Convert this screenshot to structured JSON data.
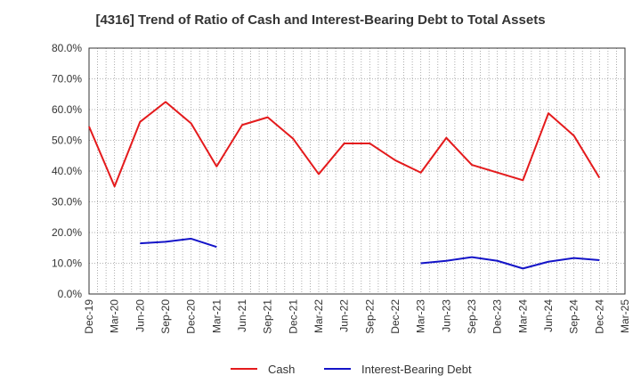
{
  "chart_data": {
    "type": "line",
    "title": "[4316]  Trend of Ratio of Cash and Interest-Bearing Debt to Total Assets",
    "xlabel": "",
    "ylabel": "",
    "ylim": [
      0,
      80
    ],
    "y_ticks": [
      "0.0%",
      "10.0%",
      "20.0%",
      "30.0%",
      "40.0%",
      "50.0%",
      "60.0%",
      "70.0%",
      "80.0%"
    ],
    "grid": true,
    "legend_position": "bottom",
    "categories": [
      "Dec-19",
      "Mar-20",
      "Jun-20",
      "Sep-20",
      "Dec-20",
      "Mar-21",
      "Jun-21",
      "Sep-21",
      "Dec-21",
      "Mar-22",
      "Jun-22",
      "Sep-22",
      "Dec-22",
      "Mar-23",
      "Jun-23",
      "Sep-23",
      "Dec-23",
      "Mar-24",
      "Jun-24",
      "Sep-24",
      "Dec-24",
      "Mar-25"
    ],
    "series": [
      {
        "name": "Cash",
        "color": "#e41a1c",
        "values": [
          54.5,
          35.0,
          56.0,
          62.5,
          55.5,
          41.5,
          55.0,
          57.5,
          50.5,
          39.0,
          49.0,
          49.0,
          43.5,
          39.5,
          50.8,
          42.0,
          39.5,
          37.0,
          58.8,
          51.5,
          37.8,
          null
        ]
      },
      {
        "name": "Interest-Bearing Debt",
        "color": "#1414c8",
        "values": [
          null,
          null,
          16.5,
          17.0,
          18.0,
          15.3,
          null,
          null,
          null,
          null,
          null,
          null,
          null,
          10.0,
          10.8,
          12.0,
          10.8,
          8.3,
          10.5,
          11.7,
          11.0,
          null
        ]
      }
    ]
  }
}
